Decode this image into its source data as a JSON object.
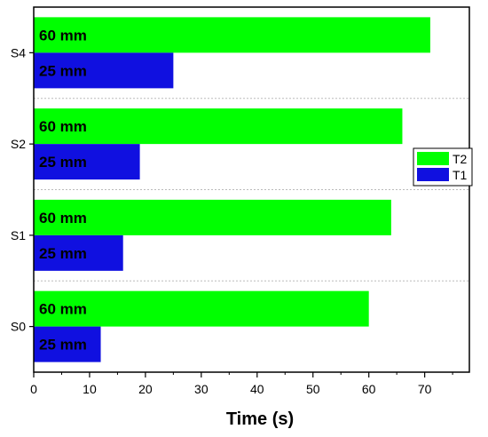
{
  "chart_data": {
    "type": "bar",
    "orientation": "horizontal",
    "categories": [
      "S0",
      "S1",
      "S2",
      "S4"
    ],
    "series": [
      {
        "name": "T1",
        "values": [
          12,
          16,
          19,
          25
        ],
        "color": "#1010e0",
        "labels": [
          "25 mm",
          "25 mm",
          "25 mm",
          "25 mm"
        ]
      },
      {
        "name": "T2",
        "values": [
          60,
          64,
          66,
          71
        ],
        "color": "#00ff00",
        "labels": [
          "60 mm",
          "60 mm",
          "60 mm",
          "60 mm"
        ]
      }
    ],
    "xlabel": "Time (s)",
    "ylabel": "",
    "xlim": [
      0,
      78
    ],
    "xticks": [
      0,
      10,
      20,
      30,
      40,
      50,
      60,
      70
    ],
    "grid": "horizontal dotted separators between groups",
    "legend": {
      "placement": "right",
      "entries": [
        "T2",
        "T1"
      ]
    }
  }
}
